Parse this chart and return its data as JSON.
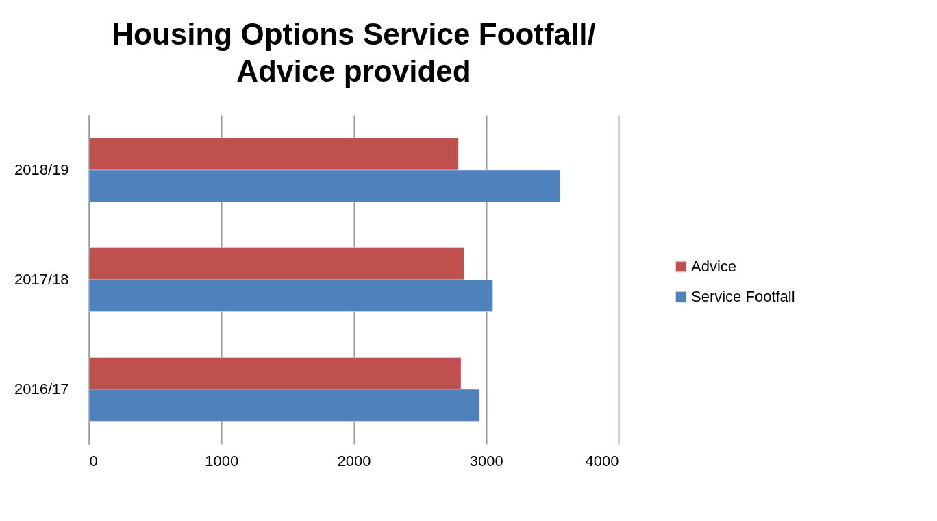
{
  "chart_data": {
    "type": "bar",
    "orientation": "horizontal",
    "title": "Housing Options Service Footfall/\nAdvice provided",
    "categories": [
      "2018/19",
      "2017/18",
      "2016/17"
    ],
    "series": [
      {
        "name": "Advice",
        "color": "#c0504d",
        "values": [
          2790,
          2835,
          2810
        ]
      },
      {
        "name": "Service Footfall",
        "color": "#4f81bd",
        "values": [
          3560,
          3050,
          2950
        ]
      }
    ],
    "xlim": [
      0,
      4000
    ],
    "xticks": [
      0,
      1000,
      2000,
      3000,
      4000
    ],
    "grid": "x",
    "legend": "right"
  }
}
